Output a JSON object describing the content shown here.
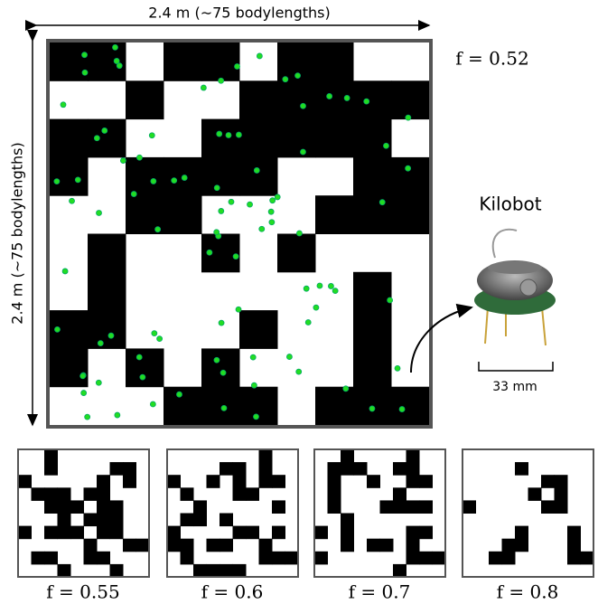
{
  "figure": {
    "top_label": "2.4 m (∼75 bodylengths)",
    "side_label": "2.4 m (∼75 bodylengths)",
    "main_fill": "f = 0.52",
    "robot_label": "Kilobot",
    "scale_label": "33 mm",
    "panels": [
      "f = 0.55",
      "f = 0.6",
      "f = 0.7",
      "f = 0.8"
    ]
  }
}
